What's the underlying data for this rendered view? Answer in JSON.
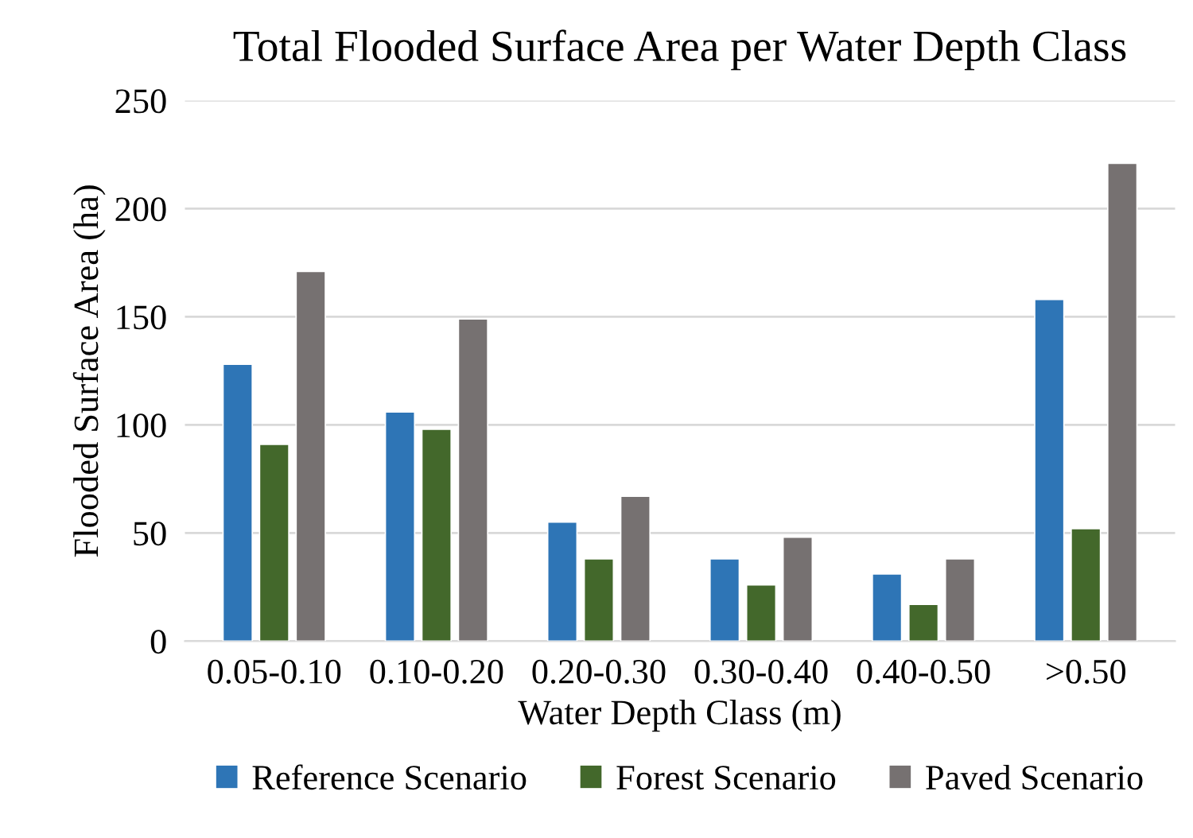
{
  "chart_data": {
    "type": "bar",
    "title": "Total Flooded Surface Area per Water Depth Class",
    "xlabel": "Water Depth Class (m)",
    "ylabel": "Flooded Surface Area (ha)",
    "categories": [
      "0.05-0.10",
      "0.10-0.20",
      "0.20-0.30",
      "0.30-0.40",
      "0.40-0.50",
      ">0.50"
    ],
    "series": [
      {
        "name": "Reference Scenario",
        "color": "#2e75b6",
        "values": [
          128,
          106,
          55,
          38,
          31,
          158
        ]
      },
      {
        "name": "Forest Scenario",
        "color": "#43682b",
        "values": [
          91,
          98,
          38,
          26,
          17,
          52
        ]
      },
      {
        "name": "Paved Scenario",
        "color": "#767171",
        "values": [
          171,
          149,
          67,
          48,
          38,
          221
        ]
      }
    ],
    "ylim": [
      0,
      250
    ],
    "yticks": [
      0,
      50,
      100,
      150,
      200,
      250
    ],
    "grid": "y",
    "legend": "bottom"
  }
}
